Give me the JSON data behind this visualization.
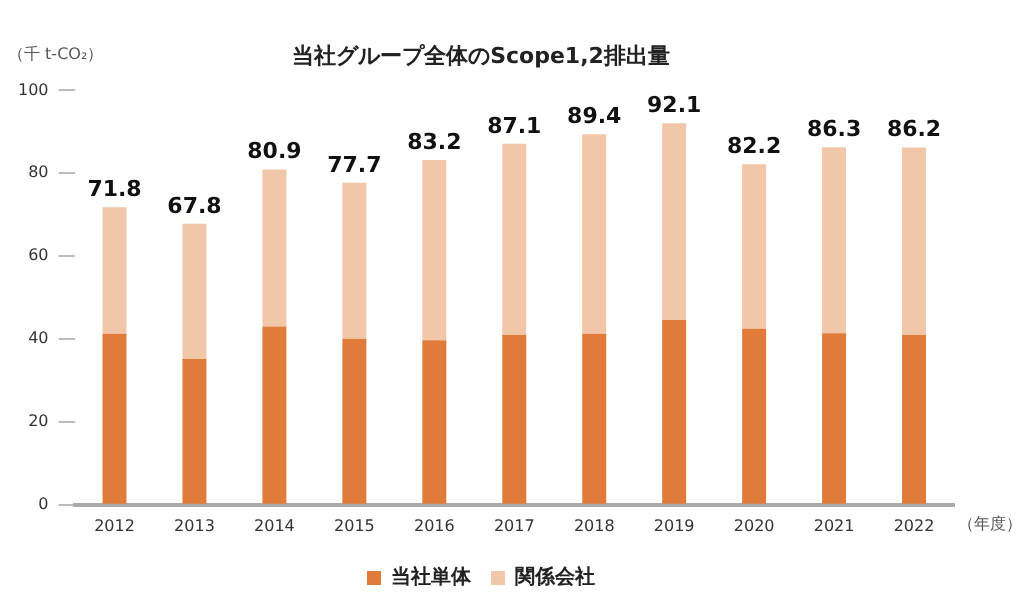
{
  "chart_data": {
    "type": "bar",
    "title": "当社グループ全体のScope1,2排出量",
    "ylabel": "（千 t-CO₂）",
    "xlabel": "（年度）",
    "categories": [
      "2012",
      "2013",
      "2014",
      "2015",
      "2016",
      "2017",
      "2018",
      "2019",
      "2020",
      "2021",
      "2022"
    ],
    "series": [
      {
        "name": "当社単体",
        "color": "#e07b39",
        "values": [
          41.3,
          35.2,
          43.0,
          40.1,
          39.7,
          41.0,
          41.3,
          44.6,
          42.5,
          41.4,
          41.0
        ]
      },
      {
        "name": "関係会社",
        "color": "#f2c6a8",
        "values": [
          30.5,
          32.6,
          37.9,
          37.6,
          43.5,
          46.1,
          48.1,
          47.5,
          39.7,
          44.9,
          45.2
        ]
      }
    ],
    "stacked": true,
    "totals": [
      "71.8",
      "67.8",
      "80.9",
      "77.7",
      "83.2",
      "87.1",
      "89.4",
      "92.1",
      "82.2",
      "86.3",
      "86.2"
    ],
    "ylim": [
      0,
      100
    ],
    "yticks": [
      0,
      20,
      40,
      60,
      80,
      100
    ],
    "grid": false,
    "legend": "bottom"
  }
}
